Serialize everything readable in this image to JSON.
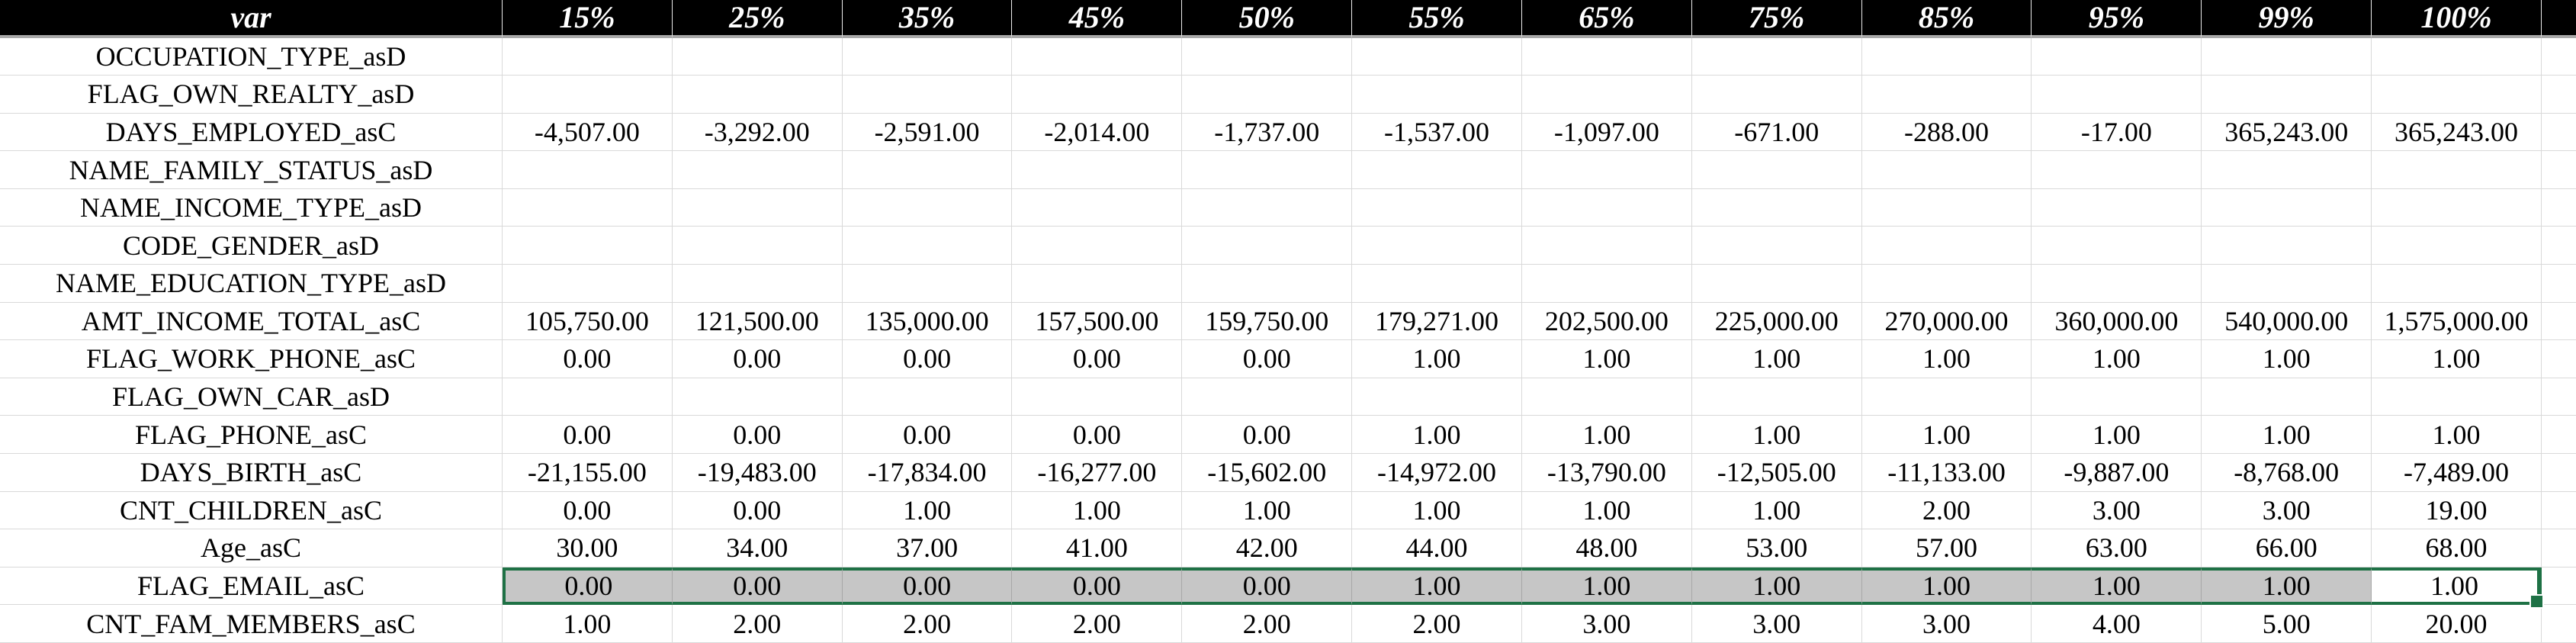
{
  "table": {
    "corner_label": "var",
    "columns": [
      "15%",
      "25%",
      "35%",
      "45%",
      "50%",
      "55%",
      "65%",
      "75%",
      "85%",
      "95%",
      "99%",
      "100%"
    ],
    "rows": [
      {
        "var": "OCCUPATION_TYPE_asD",
        "values": [
          "",
          "",
          "",
          "",
          "",
          "",
          "",
          "",
          "",
          "",
          "",
          ""
        ]
      },
      {
        "var": "FLAG_OWN_REALTY_asD",
        "values": [
          "",
          "",
          "",
          "",
          "",
          "",
          "",
          "",
          "",
          "",
          "",
          ""
        ]
      },
      {
        "var": "DAYS_EMPLOYED_asC",
        "values": [
          "-4,507.00",
          "-3,292.00",
          "-2,591.00",
          "-2,014.00",
          "-1,737.00",
          "-1,537.00",
          "-1,097.00",
          "-671.00",
          "-288.00",
          "-17.00",
          "365,243.00",
          "365,243.00"
        ]
      },
      {
        "var": "NAME_FAMILY_STATUS_asD",
        "values": [
          "",
          "",
          "",
          "",
          "",
          "",
          "",
          "",
          "",
          "",
          "",
          ""
        ]
      },
      {
        "var": "NAME_INCOME_TYPE_asD",
        "values": [
          "",
          "",
          "",
          "",
          "",
          "",
          "",
          "",
          "",
          "",
          "",
          ""
        ]
      },
      {
        "var": "CODE_GENDER_asD",
        "values": [
          "",
          "",
          "",
          "",
          "",
          "",
          "",
          "",
          "",
          "",
          "",
          ""
        ]
      },
      {
        "var": "NAME_EDUCATION_TYPE_asD",
        "values": [
          "",
          "",
          "",
          "",
          "",
          "",
          "",
          "",
          "",
          "",
          "",
          ""
        ]
      },
      {
        "var": "AMT_INCOME_TOTAL_asC",
        "values": [
          "105,750.00",
          "121,500.00",
          "135,000.00",
          "157,500.00",
          "159,750.00",
          "179,271.00",
          "202,500.00",
          "225,000.00",
          "270,000.00",
          "360,000.00",
          "540,000.00",
          "1,575,000.00"
        ]
      },
      {
        "var": "FLAG_WORK_PHONE_asC",
        "values": [
          "0.00",
          "0.00",
          "0.00",
          "0.00",
          "0.00",
          "1.00",
          "1.00",
          "1.00",
          "1.00",
          "1.00",
          "1.00",
          "1.00"
        ]
      },
      {
        "var": "FLAG_OWN_CAR_asD",
        "values": [
          "",
          "",
          "",
          "",
          "",
          "",
          "",
          "",
          "",
          "",
          "",
          ""
        ]
      },
      {
        "var": "FLAG_PHONE_asC",
        "values": [
          "0.00",
          "0.00",
          "0.00",
          "0.00",
          "0.00",
          "1.00",
          "1.00",
          "1.00",
          "1.00",
          "1.00",
          "1.00",
          "1.00"
        ]
      },
      {
        "var": "DAYS_BIRTH_asC",
        "values": [
          "-21,155.00",
          "-19,483.00",
          "-17,834.00",
          "-16,277.00",
          "-15,602.00",
          "-14,972.00",
          "-13,790.00",
          "-12,505.00",
          "-11,133.00",
          "-9,887.00",
          "-8,768.00",
          "-7,489.00"
        ]
      },
      {
        "var": "CNT_CHILDREN_asC",
        "values": [
          "0.00",
          "0.00",
          "1.00",
          "1.00",
          "1.00",
          "1.00",
          "1.00",
          "1.00",
          "2.00",
          "3.00",
          "3.00",
          "19.00"
        ]
      },
      {
        "var": "Age_asC",
        "values": [
          "30.00",
          "34.00",
          "37.00",
          "41.00",
          "42.00",
          "44.00",
          "48.00",
          "53.00",
          "57.00",
          "63.00",
          "66.00",
          "68.00"
        ]
      },
      {
        "var": "FLAG_EMAIL_asC",
        "values": [
          "0.00",
          "0.00",
          "0.00",
          "0.00",
          "0.00",
          "1.00",
          "1.00",
          "1.00",
          "1.00",
          "1.00",
          "1.00",
          "1.00"
        ]
      },
      {
        "var": "CNT_FAM_MEMBERS_asC",
        "values": [
          "1.00",
          "2.00",
          "2.00",
          "2.00",
          "2.00",
          "2.00",
          "3.00",
          "3.00",
          "3.00",
          "4.00",
          "5.00",
          "20.00"
        ]
      }
    ],
    "selection": {
      "row": "FLAG_EMAIL_asC",
      "from_column": "15%",
      "to_column": "100%",
      "active_column": "100%",
      "active_value": "1.00"
    }
  },
  "colors": {
    "header_bg": "#000000",
    "header_fg": "#ffffff",
    "header_underline": "#a9a9a9",
    "grid": "#d9d9d9",
    "sel_fill": "#c6c6c6",
    "sel_green": "#1e7145",
    "sel_grid": "#a8a8a8"
  }
}
